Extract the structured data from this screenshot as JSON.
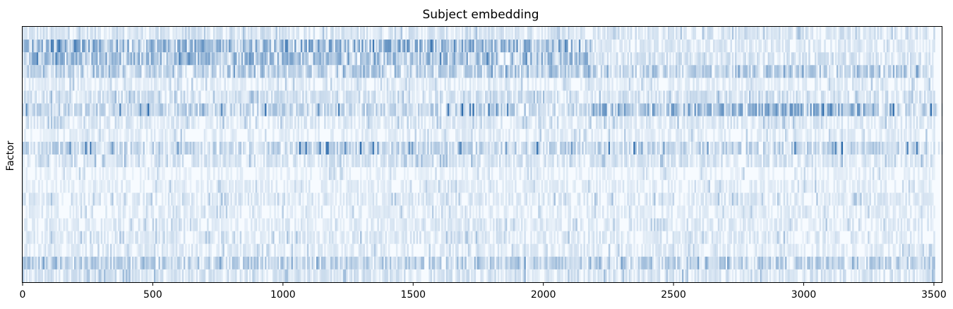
{
  "chart_data": {
    "type": "heatmap",
    "title": "Subject embedding",
    "xlabel": "",
    "ylabel": "Factor",
    "colormap": "Blues",
    "colors": {
      "low": "#f7fbff",
      "high": "#08519c",
      "frame": "#000000"
    },
    "xlim": [
      0,
      3530
    ],
    "x_ticks": [
      0,
      500,
      1000,
      1500,
      2000,
      2500,
      3000,
      3500
    ],
    "y_ticks_shown": false,
    "n_rows": 20,
    "n_columns": 3530,
    "rows": [
      {
        "factor": 1,
        "mean_intensity": 0.12,
        "peak_intensity": 0.35,
        "active_range": [
          0,
          3530
        ]
      },
      {
        "factor": 2,
        "mean_intensity": 0.35,
        "peak_intensity": 0.8,
        "active_range": [
          0,
          2180
        ],
        "note_range_after": [
          2180,
          3530
        ],
        "mean_after": 0.1
      },
      {
        "factor": 3,
        "mean_intensity": 0.3,
        "peak_intensity": 0.75,
        "active_range": [
          0,
          2180
        ],
        "mean_after": 0.12
      },
      {
        "factor": 4,
        "mean_intensity": 0.22,
        "peak_intensity": 0.6,
        "active_range": [
          0,
          3530
        ]
      },
      {
        "factor": 5,
        "mean_intensity": 0.08,
        "peak_intensity": 0.3,
        "active_range": [
          0,
          3530
        ]
      },
      {
        "factor": 6,
        "mean_intensity": 0.14,
        "peak_intensity": 0.4,
        "active_range": [
          0,
          3530
        ]
      },
      {
        "factor": 7,
        "mean_intensity": 0.2,
        "peak_intensity": 0.85,
        "active_range": [
          0,
          3530
        ],
        "dense_range": [
          2180,
          3270
        ]
      },
      {
        "factor": 8,
        "mean_intensity": 0.1,
        "peak_intensity": 0.35,
        "active_range": [
          0,
          3530
        ]
      },
      {
        "factor": 9,
        "mean_intensity": 0.08,
        "peak_intensity": 0.3,
        "active_range": [
          0,
          3530
        ]
      },
      {
        "factor": 10,
        "mean_intensity": 0.2,
        "peak_intensity": 0.85,
        "active_range": [
          0,
          3530
        ]
      },
      {
        "factor": 11,
        "mean_intensity": 0.12,
        "peak_intensity": 0.4,
        "active_range": [
          0,
          3530
        ]
      },
      {
        "factor": 12,
        "mean_intensity": 0.06,
        "peak_intensity": 0.25,
        "active_range": [
          0,
          3530
        ]
      },
      {
        "factor": 13,
        "mean_intensity": 0.08,
        "peak_intensity": 0.3,
        "active_range": [
          0,
          3530
        ]
      },
      {
        "factor": 14,
        "mean_intensity": 0.1,
        "peak_intensity": 0.35,
        "active_range": [
          0,
          3530
        ]
      },
      {
        "factor": 15,
        "mean_intensity": 0.08,
        "peak_intensity": 0.3,
        "active_range": [
          0,
          3530
        ]
      },
      {
        "factor": 16,
        "mean_intensity": 0.09,
        "peak_intensity": 0.3,
        "active_range": [
          0,
          3530
        ]
      },
      {
        "factor": 17,
        "mean_intensity": 0.1,
        "peak_intensity": 0.35,
        "active_range": [
          0,
          3530
        ]
      },
      {
        "factor": 18,
        "mean_intensity": 0.09,
        "peak_intensity": 0.3,
        "active_range": [
          0,
          3530
        ]
      },
      {
        "factor": 19,
        "mean_intensity": 0.22,
        "peak_intensity": 0.55,
        "active_range": [
          0,
          3530
        ]
      },
      {
        "factor": 20,
        "mean_intensity": 0.12,
        "peak_intensity": 0.4,
        "active_range": [
          0,
          3530
        ]
      }
    ]
  }
}
